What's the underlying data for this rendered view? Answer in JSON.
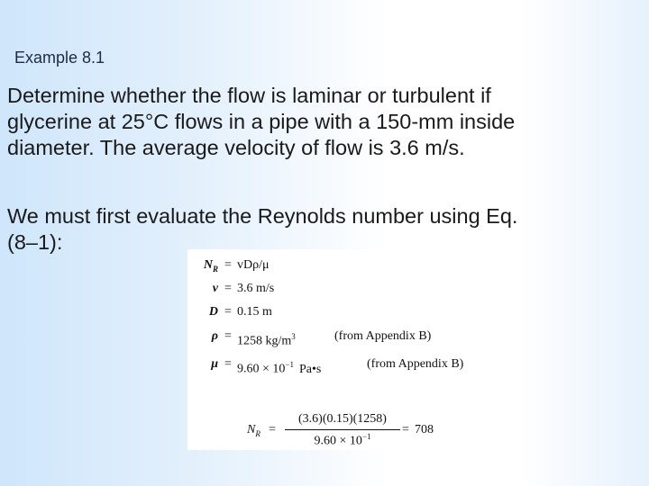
{
  "header": {
    "title": "Example 8.1"
  },
  "body": {
    "paragraphs": [
      [
        "Determine whether the flow is laminar or turbulent if",
        "glycerine at 25°C flows in a pipe with a 150-mm inside",
        "diameter. The average velocity of flow is 3.6 m/s."
      ],
      [
        "We must first evaluate the Reynolds number using Eq.",
        "(8–1):"
      ]
    ]
  },
  "equation": {
    "definitions": [
      {
        "lhs": "N",
        "sub": "R",
        "relation": "=",
        "rhs": "vDρ/μ"
      },
      {
        "lhs": "v",
        "relation": "=",
        "rhs": "3.6 m/s"
      },
      {
        "lhs": "D",
        "relation": "=",
        "rhs": "0.15 m"
      },
      {
        "lhs": "ρ",
        "relation": "=",
        "rhs": "1258 kg/m",
        "sup": "3",
        "note": "(from Appendix B)"
      },
      {
        "lhs": "μ",
        "relation": "=",
        "rhs": "9.60 × 10",
        "sup": "−1",
        "unit": "Pa•s",
        "note": "(from Appendix B)"
      }
    ],
    "result": {
      "lhs": "N",
      "sub": "R",
      "relation": "=",
      "numerator": "(3.6)(0.15)(1258)",
      "denominator": "9.60 × 10",
      "denominator_sup": "−1",
      "value": "708"
    }
  }
}
